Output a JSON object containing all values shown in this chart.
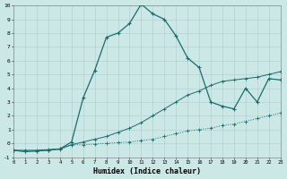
{
  "xlabel": "Humidex (Indice chaleur)",
  "bg_color": "#cce8e6",
  "line_color": "#1a6b6b",
  "grid_color": "#aacccc",
  "xlim": [
    0,
    23
  ],
  "ylim": [
    -1,
    10
  ],
  "xticks": [
    0,
    1,
    2,
    3,
    4,
    5,
    6,
    7,
    8,
    9,
    10,
    11,
    12,
    13,
    14,
    15,
    16,
    17,
    18,
    19,
    20,
    21,
    22,
    23
  ],
  "yticks": [
    -1,
    0,
    1,
    2,
    3,
    4,
    5,
    6,
    7,
    8,
    9,
    10
  ],
  "line1_x": [
    0,
    1,
    2,
    3,
    4,
    5,
    6,
    7,
    8,
    9,
    10,
    11,
    12,
    13,
    14,
    15,
    16,
    17,
    18,
    19,
    20,
    21,
    22,
    23
  ],
  "line1_y": [
    -0.5,
    -0.6,
    -0.55,
    -0.5,
    -0.45,
    -0.1,
    -0.1,
    -0.05,
    0.0,
    0.05,
    0.1,
    0.2,
    0.3,
    0.5,
    0.7,
    0.9,
    1.0,
    1.1,
    1.3,
    1.4,
    1.6,
    1.8,
    2.0,
    2.2
  ],
  "line2_x": [
    0,
    1,
    2,
    3,
    4,
    5,
    6,
    7,
    8,
    9,
    10,
    11,
    12,
    13,
    14,
    15,
    16,
    17,
    18,
    19,
    20,
    21,
    22,
    23
  ],
  "line2_y": [
    -0.5,
    -0.5,
    -0.5,
    -0.45,
    -0.4,
    -0.1,
    0.1,
    0.3,
    0.5,
    0.8,
    1.1,
    1.5,
    2.0,
    2.5,
    3.0,
    3.5,
    3.8,
    4.2,
    4.5,
    4.6,
    4.7,
    4.8,
    5.0,
    5.2
  ],
  "line3_x": [
    0,
    1,
    2,
    3,
    4,
    5,
    6,
    7,
    8,
    9,
    10,
    11,
    12,
    13,
    14,
    15,
    16,
    17,
    18,
    19,
    20,
    21,
    22,
    23
  ],
  "line3_y": [
    -0.5,
    -0.6,
    -0.55,
    -0.5,
    -0.4,
    0.1,
    3.3,
    5.3,
    7.7,
    8.0,
    8.7,
    10.1,
    9.4,
    9.0,
    7.8,
    6.2,
    5.5,
    3.0,
    2.7,
    2.5,
    4.0,
    3.0,
    4.7,
    4.6
  ]
}
